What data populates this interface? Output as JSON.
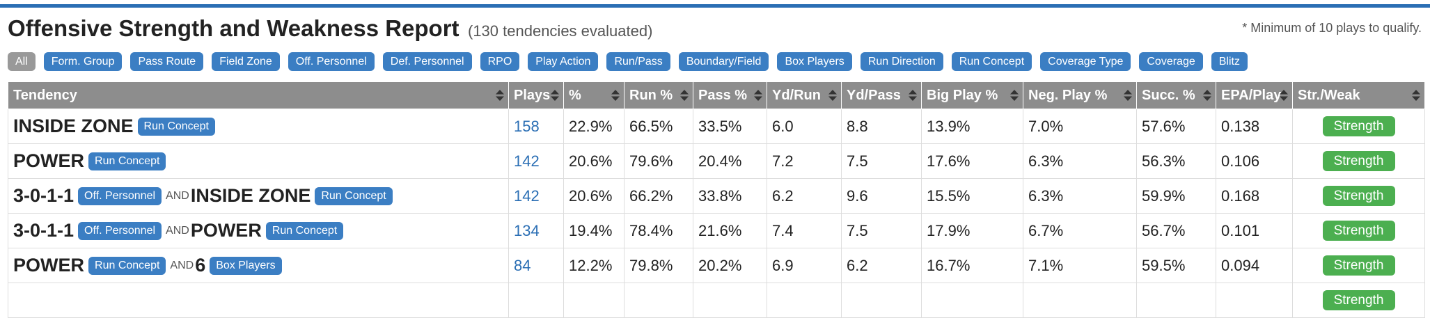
{
  "header": {
    "title": "Offensive Strength and Weakness Report",
    "subtitle": "(130 tendencies evaluated)",
    "note": "* Minimum of 10 plays to qualify."
  },
  "filters": [
    {
      "label": "All",
      "active": true
    },
    {
      "label": "Form. Group",
      "active": false
    },
    {
      "label": "Pass Route",
      "active": false
    },
    {
      "label": "Field Zone",
      "active": false
    },
    {
      "label": "Off. Personnel",
      "active": false
    },
    {
      "label": "Def. Personnel",
      "active": false
    },
    {
      "label": "RPO",
      "active": false
    },
    {
      "label": "Play Action",
      "active": false
    },
    {
      "label": "Run/Pass",
      "active": false
    },
    {
      "label": "Boundary/Field",
      "active": false
    },
    {
      "label": "Box Players",
      "active": false
    },
    {
      "label": "Run Direction",
      "active": false
    },
    {
      "label": "Run Concept",
      "active": false
    },
    {
      "label": "Coverage Type",
      "active": false
    },
    {
      "label": "Coverage",
      "active": false
    },
    {
      "label": "Blitz",
      "active": false
    }
  ],
  "table": {
    "columns": [
      "Tendency",
      "Plays",
      "%",
      "Run %",
      "Pass %",
      "Yd/Run",
      "Yd/Pass",
      "Big Play %",
      "Neg. Play %",
      "Succ. %",
      "EPA/Play",
      "Str./Weak"
    ],
    "and_label": "AND",
    "rows": [
      {
        "tendency": [
          {
            "name": "INSIDE ZONE",
            "tag": "Run Concept"
          }
        ],
        "plays": "158",
        "pct": "22.9%",
        "run": "66.5%",
        "pass": "33.5%",
        "ydrun": "6.0",
        "ydpass": "8.8",
        "big": "13.9%",
        "neg": "7.0%",
        "succ": "57.6%",
        "epa": "0.138",
        "sw": "Strength"
      },
      {
        "tendency": [
          {
            "name": "POWER",
            "tag": "Run Concept"
          }
        ],
        "plays": "142",
        "pct": "20.6%",
        "run": "79.6%",
        "pass": "20.4%",
        "ydrun": "7.2",
        "ydpass": "7.5",
        "big": "17.6%",
        "neg": "6.3%",
        "succ": "56.3%",
        "epa": "0.106",
        "sw": "Strength"
      },
      {
        "tendency": [
          {
            "name": "3-0-1-1",
            "tag": "Off. Personnel"
          },
          {
            "name": "INSIDE ZONE",
            "tag": "Run Concept"
          }
        ],
        "plays": "142",
        "pct": "20.6%",
        "run": "66.2%",
        "pass": "33.8%",
        "ydrun": "6.2",
        "ydpass": "9.6",
        "big": "15.5%",
        "neg": "6.3%",
        "succ": "59.9%",
        "epa": "0.168",
        "sw": "Strength"
      },
      {
        "tendency": [
          {
            "name": "3-0-1-1",
            "tag": "Off. Personnel"
          },
          {
            "name": "POWER",
            "tag": "Run Concept"
          }
        ],
        "plays": "134",
        "pct": "19.4%",
        "run": "78.4%",
        "pass": "21.6%",
        "ydrun": "7.4",
        "ydpass": "7.5",
        "big": "17.9%",
        "neg": "6.7%",
        "succ": "56.7%",
        "epa": "0.101",
        "sw": "Strength"
      },
      {
        "tendency": [
          {
            "name": "POWER",
            "tag": "Run Concept"
          },
          {
            "name": "6",
            "tag": "Box Players"
          }
        ],
        "plays": "84",
        "pct": "12.2%",
        "run": "79.8%",
        "pass": "20.2%",
        "ydrun": "6.9",
        "ydpass": "6.2",
        "big": "16.7%",
        "neg": "7.1%",
        "succ": "59.5%",
        "epa": "0.094",
        "sw": "Strength"
      },
      {
        "tendency": [],
        "plays": "",
        "pct": "",
        "run": "",
        "pass": "",
        "ydrun": "",
        "ydpass": "",
        "big": "",
        "neg": "",
        "succ": "",
        "epa": "",
        "sw": "Strength"
      }
    ]
  }
}
